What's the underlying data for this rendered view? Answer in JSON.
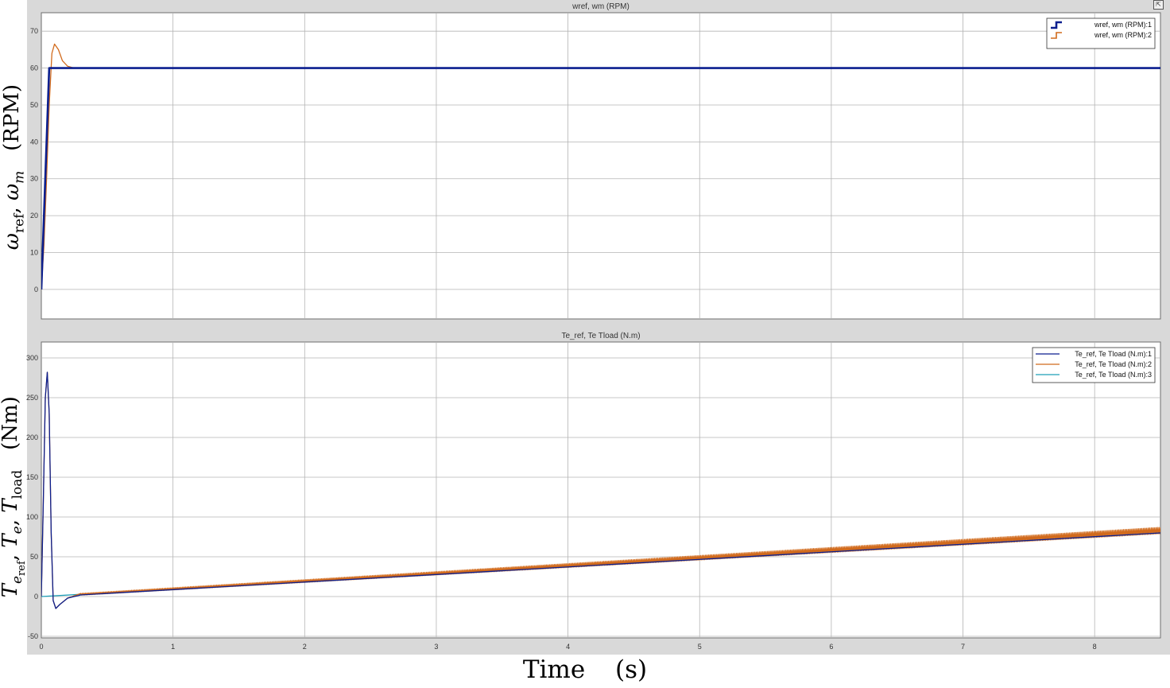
{
  "xlabel": "Time    (s)",
  "ylabel_top": {
    "sym1": "ω",
    "sub1": "ref",
    "sep": ", ",
    "sym2": "ω",
    "sub2": "m",
    "unit": "(RPM)"
  },
  "ylabel_bottom": {
    "sym1": "T",
    "sub1": "e",
    "subsub1": "ref",
    "sep1": ", ",
    "sym2": "T",
    "sub2": "e",
    "sep2": ", ",
    "sym3": "T",
    "sub3": "load",
    "unit": "(Nm)"
  },
  "colors": {
    "panel_bg": "#d9d9d9",
    "plot_bg": "#ffffff",
    "grid": "#b4b4b4",
    "series1": "#0b1f8f",
    "series2": "#d16a1c",
    "series3": "#1e9fb8"
  },
  "chart_data": [
    {
      "type": "line",
      "title": "wref, wm (RPM)",
      "xlim": [
        0,
        8.5
      ],
      "ylim": [
        -8,
        75
      ],
      "xticks": [
        0,
        1,
        2,
        3,
        4,
        5,
        6,
        7,
        8
      ],
      "xtick_labels": [
        "0",
        "1",
        "2",
        "3",
        "4",
        "5",
        "6",
        "7",
        "8"
      ],
      "yticks": [
        0,
        10,
        20,
        30,
        40,
        50,
        60,
        70
      ],
      "ytick_labels": [
        "0",
        "10",
        "20",
        "30",
        "40",
        "50",
        "60",
        "70"
      ],
      "grid": true,
      "legend_position": "top-right",
      "series": [
        {
          "name": "wref, wm (RPM):1",
          "color": "#0b1f8f",
          "x": [
            0,
            0.06,
            8.5
          ],
          "y": [
            0,
            60,
            60
          ]
        },
        {
          "name": "wref, wm (RPM):2",
          "color": "#d16a1c",
          "x": [
            0,
            0.02,
            0.04,
            0.06,
            0.08,
            0.1,
            0.13,
            0.16,
            0.2,
            0.25,
            0.3,
            8.5
          ],
          "y": [
            0,
            12,
            30,
            50,
            64,
            66.5,
            65,
            62,
            60.5,
            60,
            60,
            60
          ]
        }
      ]
    },
    {
      "type": "line",
      "title": "Te_ref, Te  Tload (N.m)",
      "xlim": [
        0,
        8.5
      ],
      "ylim": [
        -52,
        320
      ],
      "xticks": [
        0,
        1,
        2,
        3,
        4,
        5,
        6,
        7,
        8
      ],
      "xtick_labels": [
        "0",
        "1",
        "2",
        "3",
        "4",
        "5",
        "6",
        "7",
        "8"
      ],
      "yticks": [
        -50,
        0,
        50,
        100,
        150,
        200,
        250,
        300
      ],
      "ytick_labels": [
        "-50",
        "0",
        "50",
        "100",
        "150",
        "200",
        "250",
        "300"
      ],
      "grid": true,
      "legend_position": "top-right",
      "series": [
        {
          "name": "Te_ref, Te  Tload (N.m):1",
          "color": "#0b1f8f",
          "x": [
            0,
            0.015,
            0.03,
            0.045,
            0.06,
            0.075,
            0.09,
            0.11,
            0.14,
            0.2,
            0.3,
            8.5
          ],
          "y": [
            0,
            120,
            250,
            282,
            230,
            80,
            -5,
            -15,
            -10,
            -2,
            2,
            80
          ]
        },
        {
          "name": "Te_ref, Te  Tload (N.m):2",
          "color": "#d16a1c",
          "x": [
            0,
            0.015,
            0.03,
            0.045,
            0.06,
            0.075,
            0.09,
            0.11,
            0.14,
            0.2,
            0.3,
            8.5
          ],
          "y": [
            0,
            120,
            250,
            282,
            230,
            80,
            -5,
            -15,
            -10,
            -2,
            2,
            80
          ]
        },
        {
          "name": "Te_ref, Te  Tload (N.m):3",
          "color": "#1e9fb8",
          "x": [
            0,
            8.5
          ],
          "y": [
            0,
            80
          ]
        }
      ],
      "ripple_amplitude": 7
    }
  ]
}
